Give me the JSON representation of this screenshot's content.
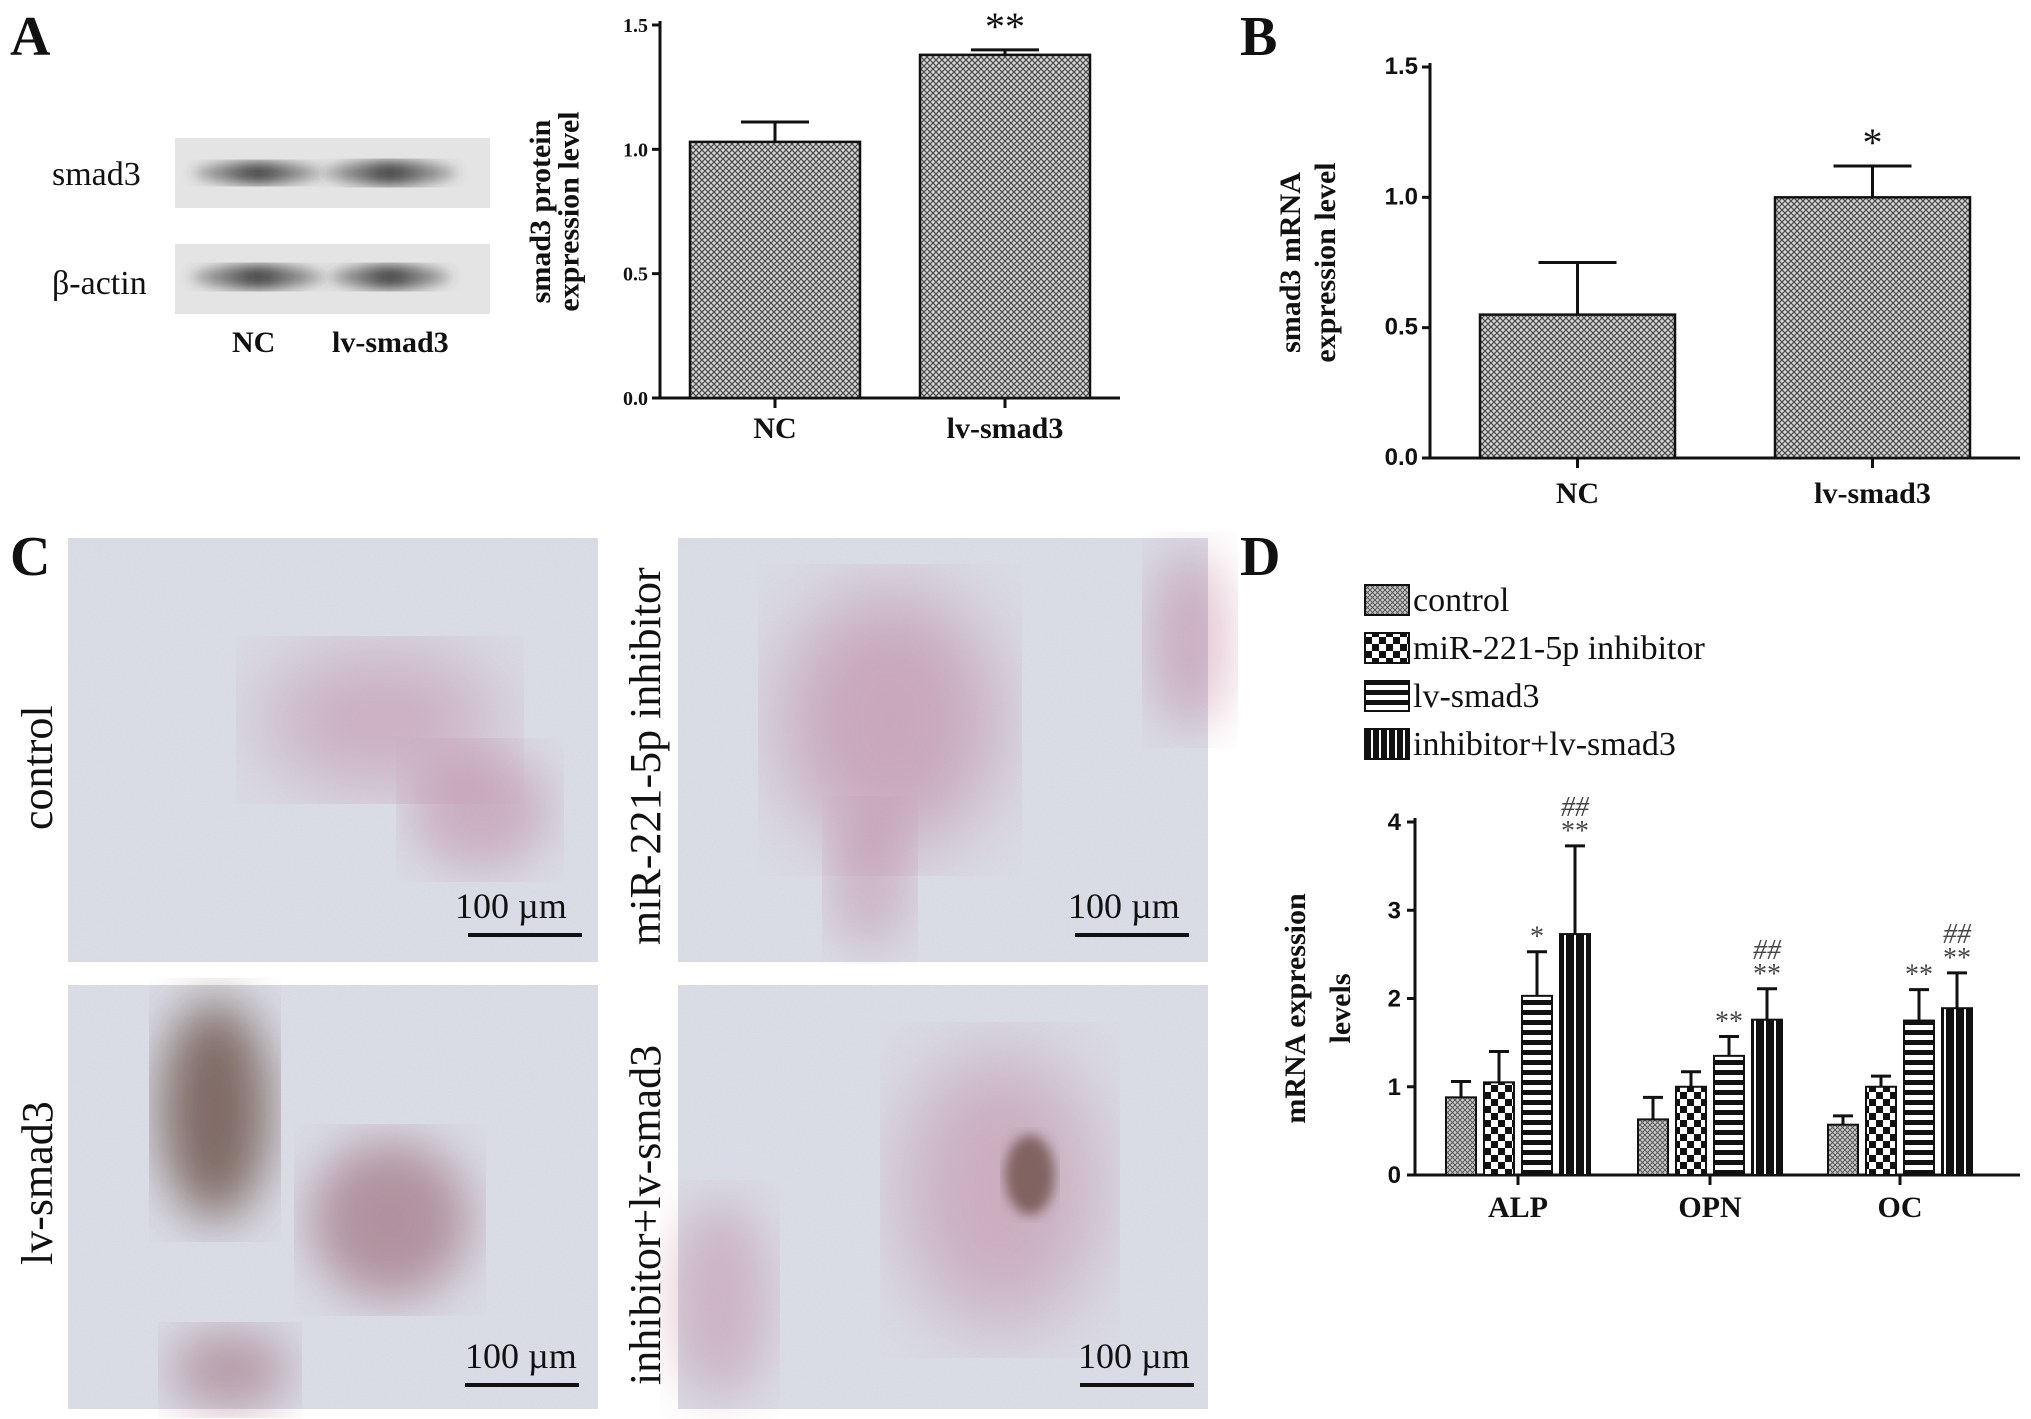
{
  "panels": {
    "A": "A",
    "B": "B",
    "C": "C",
    "D": "D"
  },
  "blot": {
    "rows": [
      "smad3",
      "β-actin"
    ],
    "lanes": [
      "NC",
      "lv-smad3"
    ]
  },
  "micrographs": {
    "labels": [
      "control",
      "miR-221-5p inhibitor",
      "lv-smad3",
      "inhibitor+lv-smad3"
    ],
    "scale_bar": "100 µm",
    "colors": {
      "background": "#dcdfe8",
      "stain_pink": "#b05a7c",
      "stain_brown": "#5a3a2e"
    }
  },
  "chart_data": [
    {
      "type": "bar",
      "panel": "A",
      "categories": [
        "NC",
        "lv-smad3"
      ],
      "values": [
        1.03,
        1.38
      ],
      "errors": [
        0.08,
        0.02
      ],
      "significance": [
        "",
        "**"
      ],
      "ylabel": [
        "smad3 protein",
        "expression level"
      ],
      "ylim": [
        0,
        1.5
      ],
      "yticks": [
        "0.0",
        "0.5",
        "1.0",
        "1.5"
      ],
      "ytick_values": [
        0,
        0.5,
        1.0,
        1.5
      ],
      "pattern": "cross-hatch",
      "grid": false
    },
    {
      "type": "bar",
      "panel": "B",
      "categories": [
        "NC",
        "lv-smad3"
      ],
      "values": [
        0.55,
        1.0
      ],
      "errors": [
        0.2,
        0.12
      ],
      "significance": [
        "",
        "*"
      ],
      "ylabel": [
        "smad3 mRNA",
        "expression level"
      ],
      "ylim": [
        0,
        1.5
      ],
      "yticks": [
        "0.0",
        "0.5",
        "1.0",
        "1.5"
      ],
      "ytick_values": [
        0,
        0.5,
        1.0,
        1.5
      ],
      "pattern": "cross-hatch",
      "grid": false
    },
    {
      "type": "bar",
      "panel": "D",
      "categories": [
        "ALP",
        "OPN",
        "OC"
      ],
      "series": [
        {
          "name": "control",
          "values": [
            0.88,
            0.63,
            0.57
          ],
          "errors": [
            0.18,
            0.25,
            0.1
          ],
          "significance": [
            "",
            "",
            ""
          ],
          "hash": [
            "",
            "",
            ""
          ],
          "pattern": "fine-cross"
        },
        {
          "name": "miR-221-5p inhibitor",
          "values": [
            1.05,
            1.0,
            1.0
          ],
          "errors": [
            0.35,
            0.17,
            0.12
          ],
          "significance": [
            "",
            "",
            ""
          ],
          "hash": [
            "",
            "",
            ""
          ],
          "pattern": "checker"
        },
        {
          "name": "lv-smad3",
          "values": [
            2.03,
            1.35,
            1.75
          ],
          "errors": [
            0.5,
            0.22,
            0.35
          ],
          "significance": [
            "*",
            "**",
            "**"
          ],
          "hash": [
            "",
            "",
            ""
          ],
          "pattern": "horizontal"
        },
        {
          "name": "inhibitor+lv-smad3",
          "values": [
            2.73,
            1.76,
            1.89
          ],
          "errors": [
            1.0,
            0.35,
            0.4
          ],
          "significance": [
            "**",
            "**",
            "**"
          ],
          "hash": [
            "##",
            "##",
            "##"
          ],
          "pattern": "vertical"
        }
      ],
      "ylabel": [
        "mRNA expression",
        "levels"
      ],
      "ylim": [
        0,
        4
      ],
      "yticks": [
        "0",
        "1",
        "2",
        "3",
        "4"
      ],
      "ytick_values": [
        0,
        1,
        2,
        3,
        4
      ],
      "legend_position": "top",
      "grid": false
    }
  ]
}
